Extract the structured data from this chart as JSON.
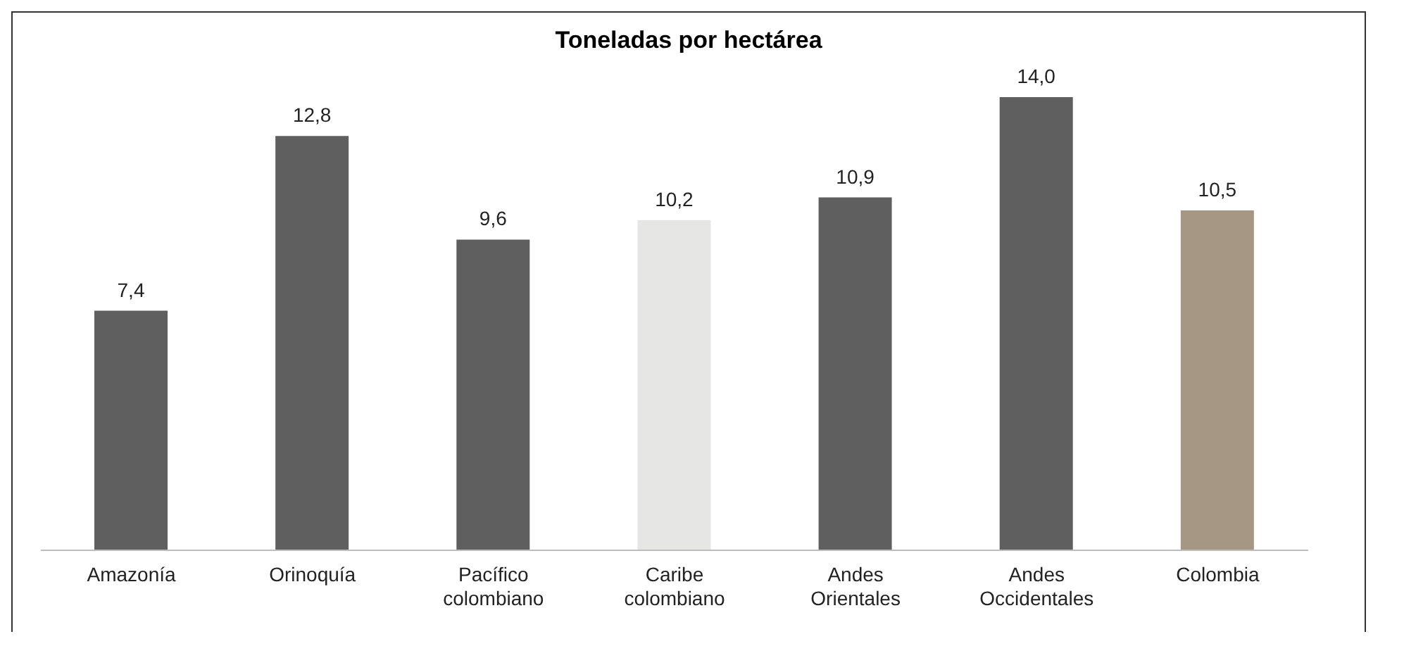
{
  "chart_data": {
    "type": "bar",
    "title": "Toneladas por hectárea",
    "categories": [
      "Amazonía",
      "Orinoquía",
      "Pacífico colombiano",
      "Caribe colombiano",
      "Andes Orientales",
      "Andes Occidentales",
      "Colombia"
    ],
    "values": [
      7.4,
      12.8,
      9.6,
      10.2,
      10.9,
      14.0,
      10.5
    ],
    "value_labels": [
      "7,4",
      "12,8",
      "9,6",
      "10,2",
      "10,9",
      "14,0",
      "10,5"
    ],
    "colors": [
      "#5f5f5f",
      "#5f5f5f",
      "#5f5f5f",
      "#e6e6e4",
      "#5f5f5f",
      "#5f5f5f",
      "#a69684"
    ]
  }
}
